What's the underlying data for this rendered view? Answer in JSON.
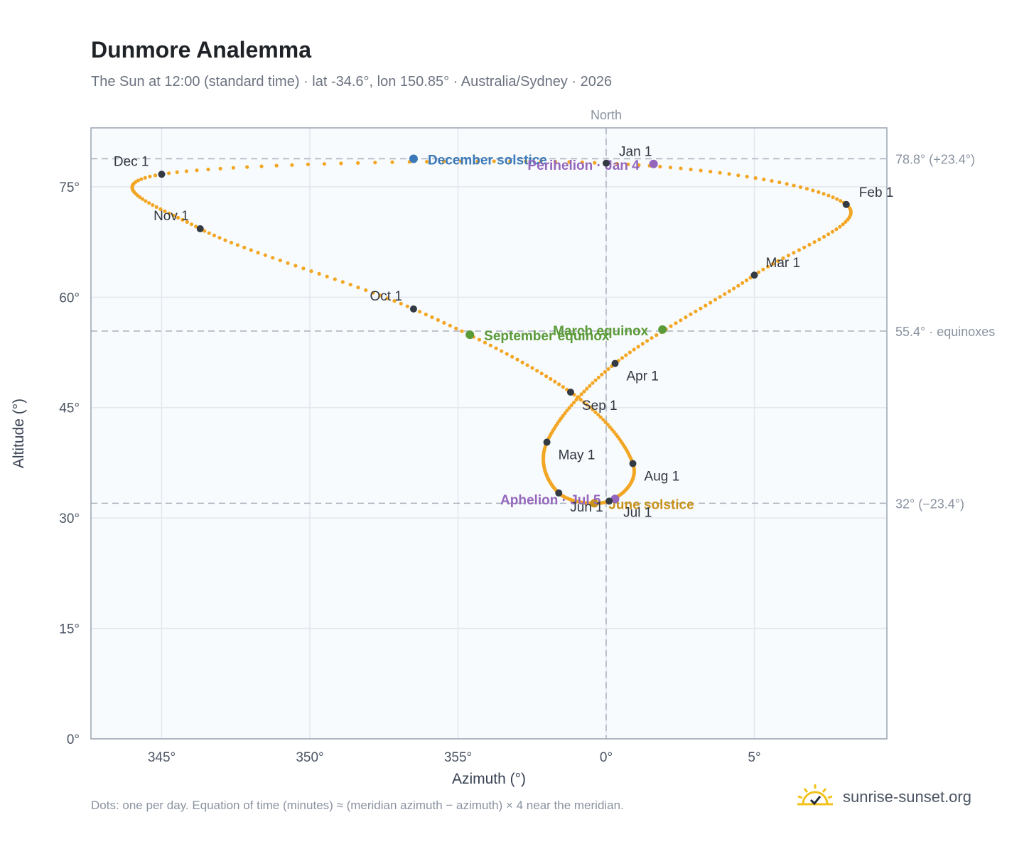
{
  "header": {
    "title": "Dunmore Analemma",
    "subtitle": "The Sun at 12:00 (standard time) · lat -34.6°, lon 150.85° · Australia/Sydney · 2026"
  },
  "footer": {
    "note": "Dots: one per day. Equation of time (minutes) ≈ (meridian azimuth − azimuth) × 4 near the meridian.",
    "brand": "sunrise-sunset.org"
  },
  "colors": {
    "path": "#f2a623",
    "month_point": "#333a44",
    "december_solstice": "#3a78b8",
    "june_solstice": "#c8921a",
    "equinox": "#5a9a38",
    "apsis": "#9467bd",
    "reference_line": "#aab2bd",
    "plot_background": "#f8fbfd"
  },
  "chart_data": {
    "type": "scatter",
    "title": "Dunmore Analemma",
    "xlabel": "Azimuth (°)",
    "ylabel": "Altitude (°)",
    "xlim": [
      -347.4,
      9.4
    ],
    "ylim": [
      0,
      83
    ],
    "x_ticks": [
      {
        "value": -15,
        "label": "345°"
      },
      {
        "value": -10,
        "label": "350°"
      },
      {
        "value": -5,
        "label": "355°"
      },
      {
        "value": 0,
        "label": "0°"
      },
      {
        "value": 5,
        "label": "5°"
      }
    ],
    "y_ticks": [
      {
        "value": 0,
        "label": "0°"
      },
      {
        "value": 15,
        "label": "15°"
      },
      {
        "value": 30,
        "label": "30°"
      },
      {
        "value": 45,
        "label": "45°"
      },
      {
        "value": 60,
        "label": "60°"
      },
      {
        "value": 75,
        "label": "75°"
      }
    ],
    "grid": true,
    "north_marker": {
      "azimuth": 0,
      "label": "North"
    },
    "reference_lines": [
      {
        "altitude": 78.8,
        "label": "78.8° (+23.4°)"
      },
      {
        "altitude": 55.4,
        "label": "55.4° · equinoxes"
      },
      {
        "altitude": 32.0,
        "label": "32° (−23.4°)"
      }
    ],
    "month_points": [
      {
        "label": "Jan 1",
        "azimuth": 0.0,
        "altitude": 78.2
      },
      {
        "label": "Feb 1",
        "azimuth": 8.1,
        "altitude": 72.6
      },
      {
        "label": "Mar 1",
        "azimuth": 5.0,
        "altitude": 63.0
      },
      {
        "label": "Apr 1",
        "azimuth": 0.3,
        "altitude": 51.0
      },
      {
        "label": "May 1",
        "azimuth": -2.0,
        "altitude": 40.3
      },
      {
        "label": "Jun 1",
        "azimuth": -1.6,
        "altitude": 33.4
      },
      {
        "label": "Jul 1",
        "azimuth": 0.1,
        "altitude": 32.3
      },
      {
        "label": "Aug 1",
        "azimuth": 0.9,
        "altitude": 37.4
      },
      {
        "label": "Sep 1",
        "azimuth": -1.2,
        "altitude": 47.1
      },
      {
        "label": "Oct 1",
        "azimuth": -6.5,
        "altitude": 58.4
      },
      {
        "label": "Nov 1",
        "azimuth": -13.7,
        "altitude": 69.3
      },
      {
        "label": "Dec 1",
        "azimuth": -15.0,
        "altitude": 76.7
      }
    ],
    "special_points": [
      {
        "label": "December solstice",
        "kind": "december_solstice",
        "azimuth": -6.5,
        "altitude": 78.8
      },
      {
        "label": "Perihelion · Jan 4",
        "kind": "apsis",
        "azimuth": 1.6,
        "altitude": 78.1
      },
      {
        "label": "March equinox",
        "kind": "equinox",
        "azimuth": 1.9,
        "altitude": 55.6
      },
      {
        "label": "September equinox",
        "kind": "equinox",
        "azimuth": -4.6,
        "altitude": 54.9
      },
      {
        "label": "June solstice",
        "kind": "june_solstice",
        "azimuth": -0.4,
        "altitude": 32.0
      },
      {
        "label": "Aphelion · Jul 5",
        "kind": "apsis",
        "azimuth": 0.3,
        "altitude": 32.6
      }
    ]
  }
}
